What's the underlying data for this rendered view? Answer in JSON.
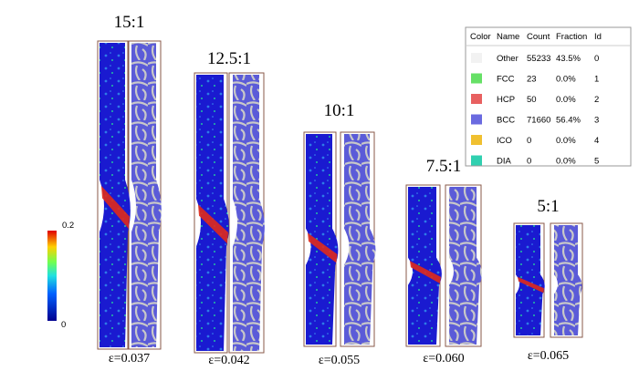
{
  "panels": [
    {
      "ratio": "15:1",
      "strain": "ε=0.037"
    },
    {
      "ratio": "12.5:1",
      "strain": "ε=0.042"
    },
    {
      "ratio": "10:1",
      "strain": "ε=0.055"
    },
    {
      "ratio": "7.5:1",
      "strain": "ε=0.060"
    },
    {
      "ratio": "5:1",
      "strain": "ε=0.065"
    }
  ],
  "colorbar": {
    "max": "0.2",
    "min": "0"
  },
  "table": {
    "headers": [
      "Color",
      "Name",
      "Count",
      "Fraction",
      "Id"
    ],
    "rows": [
      {
        "color": "#f2f2f2",
        "cells": [
          "Other",
          "55233",
          "43.5%",
          "0"
        ]
      },
      {
        "color": "#66e066",
        "cells": [
          "FCC",
          "23",
          "0.0%",
          "1"
        ]
      },
      {
        "color": "#e86060",
        "cells": [
          "HCP",
          "50",
          "0.0%",
          "2"
        ]
      },
      {
        "color": "#6a6ae0",
        "cells": [
          "BCC",
          "71660",
          "56.4%",
          "3"
        ]
      },
      {
        "color": "#f0c030",
        "cells": [
          "ICO",
          "0",
          "0.0%",
          "4"
        ]
      },
      {
        "color": "#30d0b0",
        "cells": [
          "DIA",
          "0",
          "0.0%",
          "5"
        ]
      }
    ]
  }
}
